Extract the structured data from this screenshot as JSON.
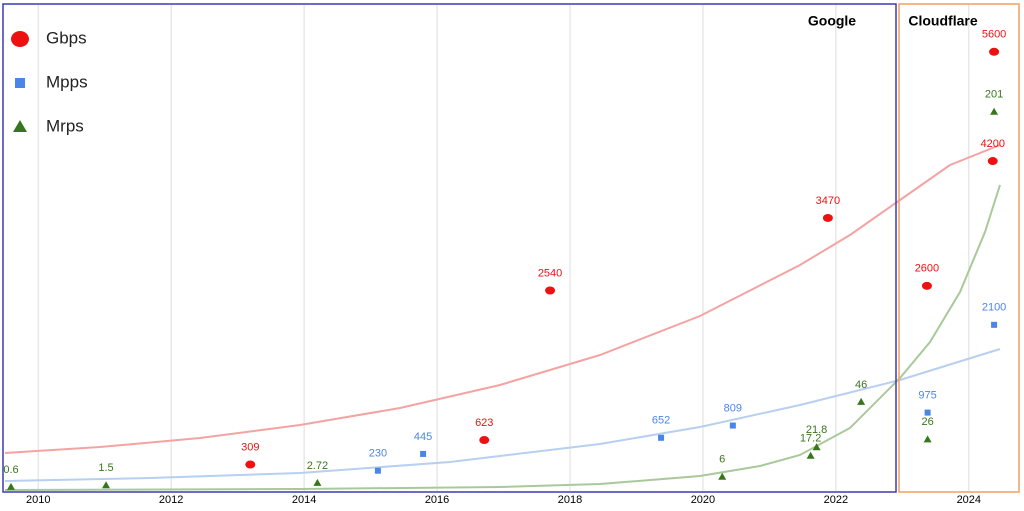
{
  "chart_data": {
    "type": "scatter",
    "annotations": [
      {
        "text": "Google"
      },
      {
        "text": "Cloudflare"
      }
    ],
    "xlim": [
      2009.5,
      2024.77
    ],
    "xticks": [
      2010,
      2012,
      2014,
      2016,
      2018,
      2020,
      2022,
      2024
    ],
    "ylim": [
      -30,
      6200
    ],
    "y2lim": [
      -1.6,
      258
    ],
    "grid": true,
    "legend": "top-left",
    "series": [
      {
        "name": "Gbps",
        "color": "#ee1111",
        "marker": "circle",
        "x": [
          2013.19,
          2016.71,
          2017.7,
          2021.88,
          2023.37,
          2024.36,
          2024.38
        ],
        "values": [
          309,
          623,
          2540,
          3470,
          2600,
          4200,
          5600
        ]
      },
      {
        "name": "Mpps",
        "color": "#4a86e8",
        "marker": "square",
        "x": [
          2015.11,
          2015.79,
          2019.37,
          2020.45,
          2023.38,
          2024.38
        ],
        "values": [
          230,
          445,
          652,
          809,
          975,
          2100
        ]
      },
      {
        "name": "Mrps",
        "color": "#38761d",
        "marker": "triangle",
        "axis": "y2",
        "x": [
          2009.59,
          2011.02,
          2014.2,
          2020.29,
          2021.62,
          2021.71,
          2022.38,
          2023.38,
          2024.38
        ],
        "values": [
          0.6,
          1.5,
          2.72,
          6,
          17.2,
          21.8,
          46,
          26,
          201
        ]
      }
    ]
  }
}
